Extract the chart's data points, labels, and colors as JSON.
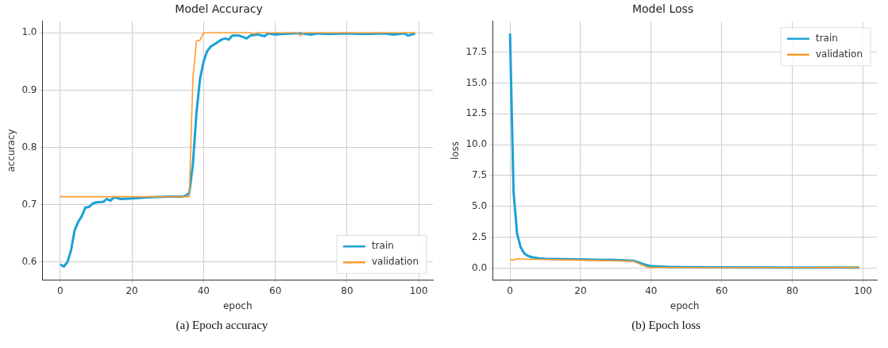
{
  "chart_data": [
    {
      "type": "line",
      "title": "Model Accuracy",
      "xlabel": "epoch",
      "ylabel": "accuracy",
      "grid": true,
      "legend": "bottom right",
      "annotations": [
        "(a) Epoch accuracy"
      ],
      "xlim": [
        -4.95,
        103.95
      ],
      "xticks": [
        0,
        20,
        40,
        60,
        80,
        100
      ],
      "ylim": [
        0.569,
        1.02
      ],
      "yticks": [
        0.6,
        0.7,
        0.8,
        0.9,
        {
          "value": 1,
          "label": "1.0"
        }
      ],
      "series": [
        {
          "name": "train",
          "color": "#1ba1d6",
          "x": [
            0,
            1,
            2,
            3,
            4,
            5,
            6,
            7,
            8,
            9,
            10,
            12,
            13,
            14,
            15,
            17,
            20,
            25,
            30,
            34,
            35,
            36,
            37,
            38,
            39,
            40,
            41,
            42,
            43,
            45,
            46,
            47,
            48,
            50,
            52,
            53,
            55,
            57,
            58,
            60,
            62,
            65,
            67,
            70,
            72,
            75,
            80,
            85,
            90,
            93,
            96,
            97,
            99
          ],
          "values": [
            0.596,
            0.592,
            0.6,
            0.62,
            0.655,
            0.67,
            0.68,
            0.695,
            0.696,
            0.702,
            0.704,
            0.705,
            0.71,
            0.707,
            0.713,
            0.71,
            0.711,
            0.713,
            0.714,
            0.714,
            0.716,
            0.72,
            0.77,
            0.86,
            0.92,
            0.95,
            0.968,
            0.976,
            0.98,
            0.988,
            0.99,
            0.988,
            0.995,
            0.995,
            0.99,
            0.995,
            0.997,
            0.994,
            0.999,
            0.997,
            0.998,
            0.999,
            0.999,
            0.997,
            0.999,
            0.998,
            0.999,
            0.998,
            0.999,
            0.997,
            0.999,
            0.995,
            0.999
          ]
        },
        {
          "name": "validation",
          "color": "#ff9a2e",
          "x": [
            0,
            36,
            37,
            38,
            39,
            40,
            53,
            54,
            55,
            66,
            67,
            68,
            99
          ],
          "values": [
            0.714,
            0.714,
            0.92,
            0.986,
            0.987,
            1.0,
            1.0,
            0.998,
            1.0,
            1.0,
            0.995,
            1.0,
            1.0
          ]
        }
      ]
    },
    {
      "type": "line",
      "title": "Model Loss",
      "xlabel": "epoch",
      "ylabel": "loss",
      "grid": true,
      "legend": "top right",
      "annotations": [
        "(b) Epoch loss"
      ],
      "xlim": [
        -4.95,
        103.95
      ],
      "xticks": [
        0,
        20,
        40,
        60,
        80,
        100
      ],
      "ylim": [
        -0.95,
        20.0
      ],
      "yticks": [
        {
          "value": 0,
          "label": "0.0"
        },
        2.5,
        {
          "value": 5,
          "label": "5.0"
        },
        7.5,
        {
          "value": 10,
          "label": "10.0"
        },
        12.5,
        {
          "value": 15,
          "label": "15.0"
        },
        17.5
      ],
      "series": [
        {
          "name": "train",
          "color": "#1ba1d6",
          "x": [
            0,
            1,
            2,
            3,
            4,
            5,
            6,
            8,
            10,
            20,
            30,
            35,
            36,
            38,
            40,
            45,
            50,
            60,
            80,
            99
          ],
          "values": [
            19.0,
            6.2,
            2.8,
            1.7,
            1.2,
            1.0,
            0.9,
            0.8,
            0.75,
            0.7,
            0.65,
            0.6,
            0.5,
            0.3,
            0.15,
            0.1,
            0.08,
            0.06,
            0.05,
            0.05
          ]
        },
        {
          "name": "validation",
          "color": "#ff9a2e",
          "x": [
            0,
            1,
            2,
            5,
            20,
            35,
            37,
            39,
            40,
            60,
            99
          ],
          "values": [
            0.7,
            0.65,
            0.75,
            0.72,
            0.65,
            0.55,
            0.3,
            0.08,
            0.05,
            0.04,
            0.05
          ]
        }
      ]
    }
  ]
}
